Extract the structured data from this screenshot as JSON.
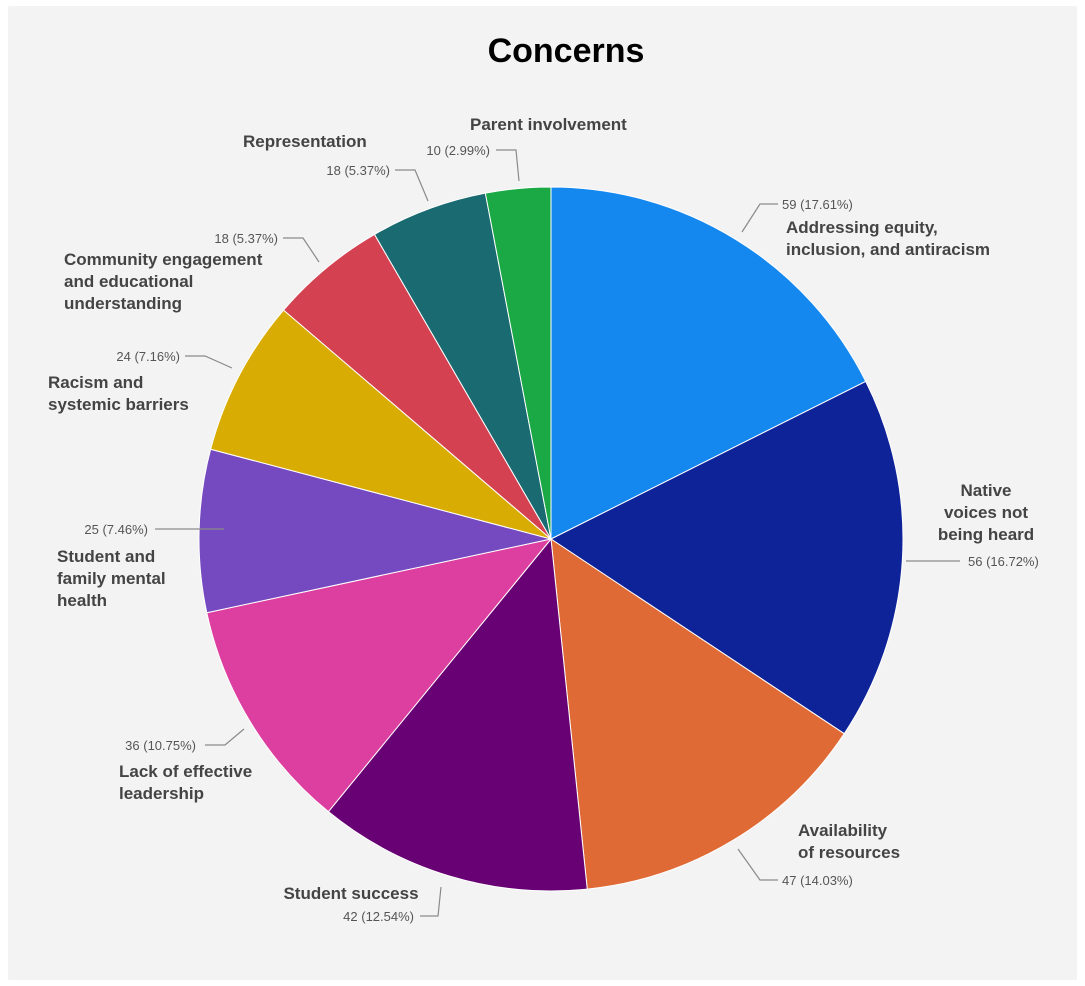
{
  "chart_data": {
    "type": "pie",
    "title": "Concerns",
    "start_angle_deg": 0,
    "direction": "clockwise",
    "slices": [
      {
        "label": "Addressing equity, inclusion, and antiracism",
        "lines": [
          "Addressing equity,",
          "inclusion, and antiracism"
        ],
        "value": 59,
        "value_label": "59 (17.61%)",
        "color": "#1588f0"
      },
      {
        "label": "Native voices not being heard",
        "lines": [
          "Native",
          "voices not",
          "being heard"
        ],
        "value": 56,
        "value_label": "56 (16.72%)",
        "color": "#0f2399"
      },
      {
        "label": "Availability of resources",
        "lines": [
          "Availability",
          "of resources"
        ],
        "value": 47,
        "value_label": "47 (14.03%)",
        "color": "#e06a35"
      },
      {
        "label": "Student success",
        "lines": [
          "Student success"
        ],
        "value": 42,
        "value_label": "42 (12.54%)",
        "color": "#680274"
      },
      {
        "label": "Lack of effective leadership",
        "lines": [
          "Lack of effective",
          "leadership"
        ],
        "value": 36,
        "value_label": "36 (10.75%)",
        "color": "#dc3f9f"
      },
      {
        "label": "Student and family mental health",
        "lines": [
          "Student and",
          "family mental",
          "health"
        ],
        "value": 25,
        "value_label": "25 (7.46%)",
        "color": "#7549bf"
      },
      {
        "label": "Racism and systemic barriers",
        "lines": [
          "Racism and",
          "systemic barriers"
        ],
        "value": 24,
        "value_label": "24 (7.16%)",
        "color": "#d9ac04"
      },
      {
        "label": "Community engagement and educational understanding",
        "lines": [
          "Community engagement",
          "and educational",
          "understanding"
        ],
        "value": 18,
        "value_label": "18 (5.37%)",
        "color": "#d44150"
      },
      {
        "label": "Representation",
        "lines": [
          "Representation"
        ],
        "value": 18,
        "value_label": "18 (5.37%)",
        "color": "#196b71"
      },
      {
        "label": "Parent involvement",
        "lines": [
          "Parent involvement"
        ],
        "value": 10,
        "value_label": "10 (2.99%)",
        "color": "#1aa945"
      }
    ]
  }
}
